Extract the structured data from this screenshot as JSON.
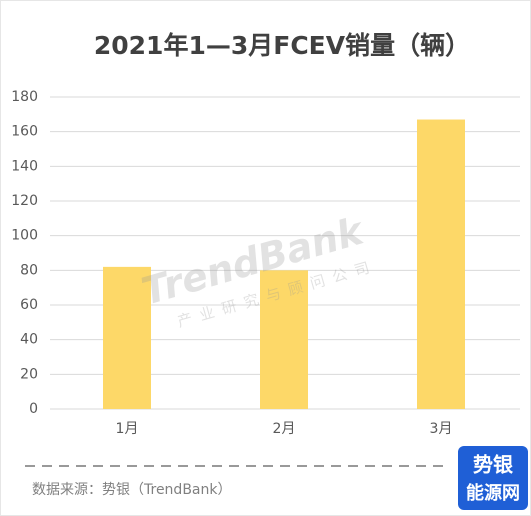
{
  "chart_data": {
    "type": "bar",
    "title": "2021年1—3月FCEV销量（辆）",
    "categories": [
      "1月",
      "2月",
      "3月"
    ],
    "values": [
      82,
      80,
      167
    ],
    "color": "#fdd868",
    "ylim": [
      0,
      180
    ],
    "yticks": [
      0,
      20,
      40,
      60,
      80,
      100,
      120,
      140,
      160,
      180
    ],
    "grid": true,
    "source": "数据来源：势银（TrendBank）",
    "watermark": "TrendBank",
    "watermark_subtitle": "产业研究与顾问公司",
    "logo_top": "势银",
    "logo_bottom": "能源网"
  }
}
